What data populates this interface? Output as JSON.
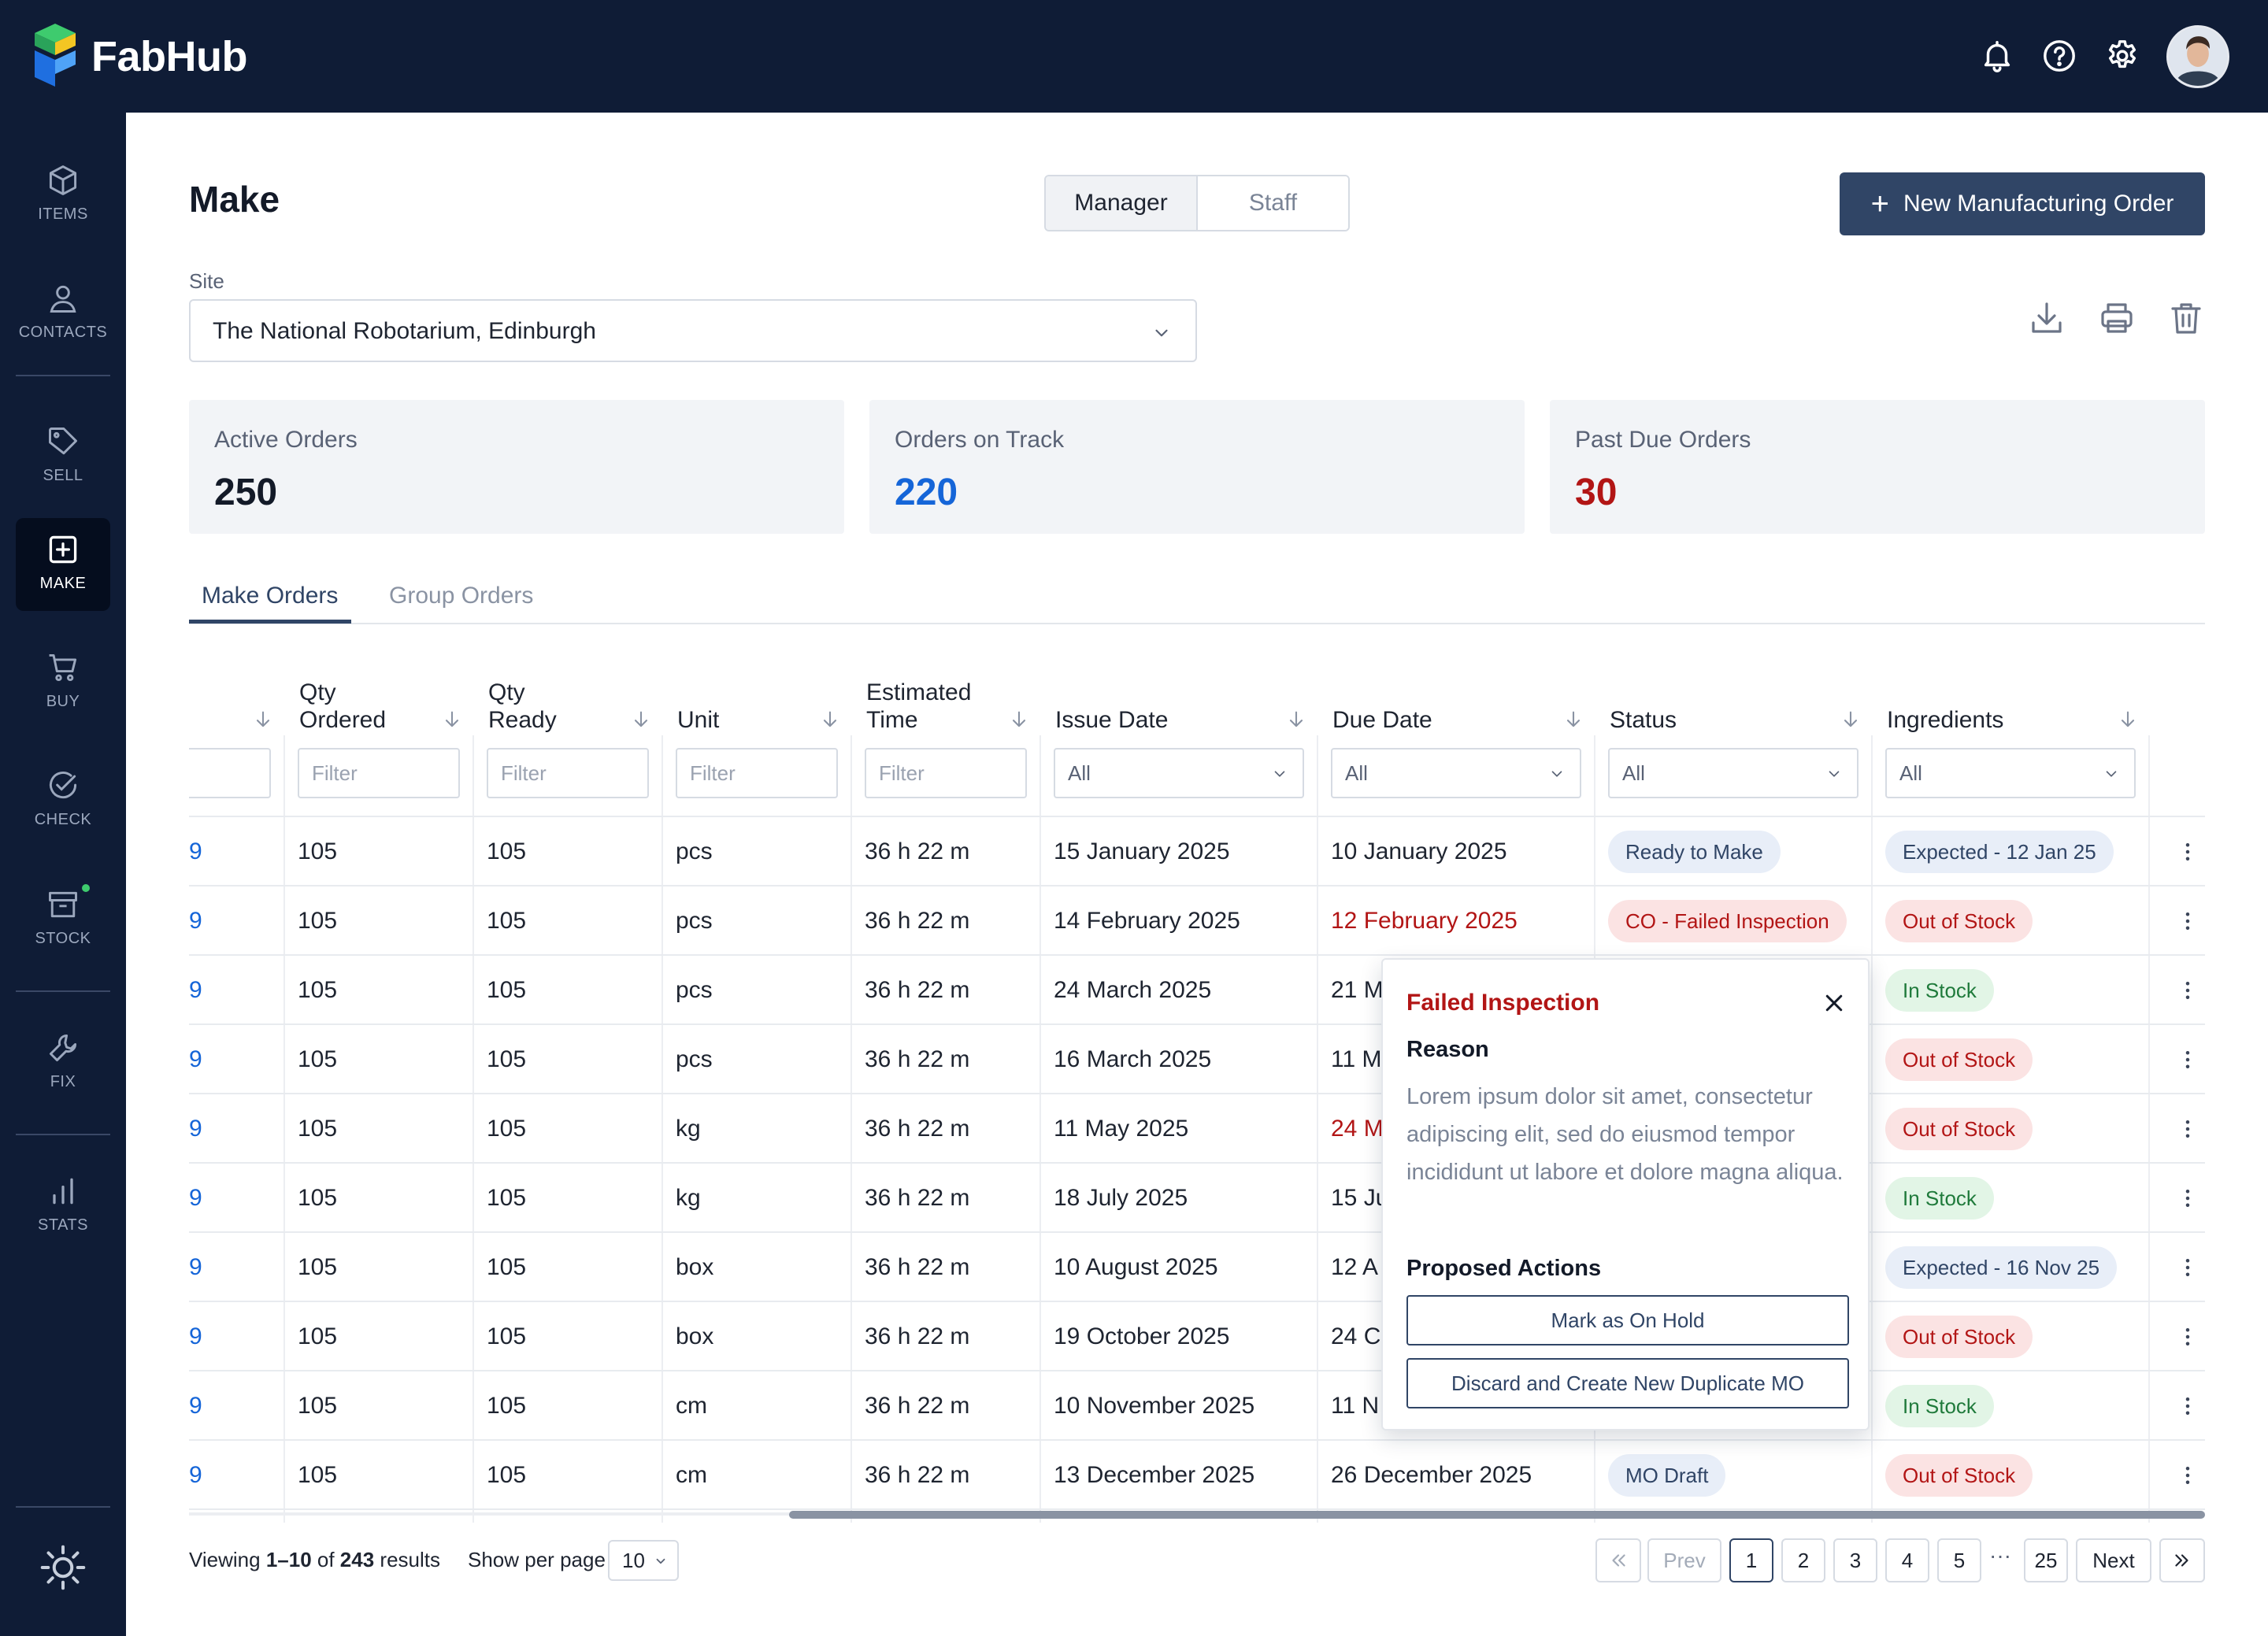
{
  "app": {
    "brand": "FabHub"
  },
  "colors": {
    "nav_bg": "#0f1c36",
    "accent": "#304566",
    "link_blue": "#1565d8",
    "danger": "#b21515",
    "success": "#1f7a3b"
  },
  "topbar": {
    "icons": [
      "bell-icon",
      "help-icon",
      "gear-icon"
    ],
    "avatar": "user-avatar"
  },
  "sidebar": {
    "items": [
      {
        "label": "ITEMS",
        "icon": "box-icon"
      },
      {
        "label": "CONTACTS",
        "icon": "person-icon"
      },
      {
        "label": "SELL",
        "icon": "tag-icon"
      },
      {
        "label": "MAKE",
        "icon": "plus-square-icon",
        "active": true
      },
      {
        "label": "BUY",
        "icon": "cart-icon"
      },
      {
        "label": "CHECK",
        "icon": "check-circle-icon"
      },
      {
        "label": "STOCK",
        "icon": "archive-icon"
      },
      {
        "label": "FIX",
        "icon": "wrench-icon"
      },
      {
        "label": "STATS",
        "icon": "bar-chart-icon"
      }
    ],
    "theme_icon": "sun-icon"
  },
  "header": {
    "title": "Make",
    "view_toggle": {
      "options": [
        "Manager",
        "Staff"
      ],
      "selected": "Manager"
    },
    "new_button": "New Manufacturing Order",
    "site_label": "Site",
    "site_value": "The National Robotarium, Edinburgh",
    "actions": [
      "download-icon",
      "print-icon",
      "trash-icon"
    ]
  },
  "stats": [
    {
      "label": "Active Orders",
      "value": "250"
    },
    {
      "label": "Orders on Track",
      "value": "220"
    },
    {
      "label": "Past Due Orders",
      "value": "30"
    }
  ],
  "tabs": {
    "items": [
      "Make Orders",
      "Group Orders"
    ],
    "active": "Make Orders"
  },
  "table": {
    "columns": [
      {
        "label": "",
        "filter": ""
      },
      {
        "label": "Qty\nOrdered",
        "filter": "Filter"
      },
      {
        "label": "Qty\nReady",
        "filter": "Filter"
      },
      {
        "label": "Unit",
        "filter": "Filter"
      },
      {
        "label": "Estimated\nTime",
        "filter": "Filter"
      },
      {
        "label": "Issue Date",
        "filter": "All"
      },
      {
        "label": "Due Date",
        "filter": "All"
      },
      {
        "label": "Status",
        "filter": "All"
      },
      {
        "label": "Ingredients",
        "filter": "All"
      }
    ],
    "rows": [
      {
        "id": "9",
        "qty_ordered": "105",
        "qty_ready": "105",
        "unit": "pcs",
        "time": "36 h 22 m",
        "issue": "15 January 2025",
        "due": "10 January 2025",
        "due_overdue": false,
        "status": "Ready to Make",
        "status_type": "ready",
        "ingredients": "Expected - 12 Jan 25",
        "ing_type": "expected"
      },
      {
        "id": "9",
        "qty_ordered": "105",
        "qty_ready": "105",
        "unit": "pcs",
        "time": "36 h 22 m",
        "issue": "14 February 2025",
        "due": "12 February 2025",
        "due_overdue": true,
        "status": "CO - Failed Inspection",
        "status_type": "failed",
        "ingredients": "Out of Stock",
        "ing_type": "out"
      },
      {
        "id": "9",
        "qty_ordered": "105",
        "qty_ready": "105",
        "unit": "pcs",
        "time": "36 h 22 m",
        "issue": "24 March 2025",
        "due": "21 M",
        "due_overdue": false,
        "status": "",
        "status_type": "",
        "ingredients": "In Stock",
        "ing_type": "instock"
      },
      {
        "id": "9",
        "qty_ordered": "105",
        "qty_ready": "105",
        "unit": "pcs",
        "time": "36 h 22 m",
        "issue": "16 March 2025",
        "due": "11 M",
        "due_overdue": false,
        "status": "",
        "status_type": "",
        "ingredients": "Out of Stock",
        "ing_type": "out"
      },
      {
        "id": "9",
        "qty_ordered": "105",
        "qty_ready": "105",
        "unit": "kg",
        "time": "36 h 22 m",
        "issue": "11 May 2025",
        "due": "24 M",
        "due_overdue": true,
        "status": "",
        "status_type": "",
        "ingredients": "Out of Stock",
        "ing_type": "out"
      },
      {
        "id": "9",
        "qty_ordered": "105",
        "qty_ready": "105",
        "unit": "kg",
        "time": "36 h 22 m",
        "issue": "18 July 2025",
        "due": "15 Ju",
        "due_overdue": false,
        "status": "",
        "status_type": "",
        "ingredients": "In Stock",
        "ing_type": "instock"
      },
      {
        "id": "9",
        "qty_ordered": "105",
        "qty_ready": "105",
        "unit": "box",
        "time": "36 h 22 m",
        "issue": "10 August 2025",
        "due": "12 A",
        "due_overdue": false,
        "status": "",
        "status_type": "",
        "ingredients": "Expected - 16 Nov 25",
        "ing_type": "expected"
      },
      {
        "id": "9",
        "qty_ordered": "105",
        "qty_ready": "105",
        "unit": "box",
        "time": "36 h 22 m",
        "issue": "19 October 2025",
        "due": "24 C",
        "due_overdue": false,
        "status": "",
        "status_type": "",
        "ingredients": "Out of Stock",
        "ing_type": "out"
      },
      {
        "id": "9",
        "qty_ordered": "105",
        "qty_ready": "105",
        "unit": "cm",
        "time": "36 h 22 m",
        "issue": "10 November 2025",
        "due": "11 N",
        "due_overdue": false,
        "status": "",
        "status_type": "",
        "ingredients": "In Stock",
        "ing_type": "instock"
      },
      {
        "id": "9",
        "qty_ordered": "105",
        "qty_ready": "105",
        "unit": "cm",
        "time": "36 h 22 m",
        "issue": "13 December 2025",
        "due": "26 December 2025",
        "due_overdue": false,
        "status": "MO Draft",
        "status_type": "draft",
        "ingredients": "Out of Stock",
        "ing_type": "out"
      }
    ]
  },
  "popover": {
    "title": "Failed Inspection",
    "reason_label": "Reason",
    "reason_text": "Lorem ipsum dolor sit amet, consectetur adipiscing elit, sed do eiusmod tempor incididunt ut labore et dolore magna aliqua.",
    "actions_label": "Proposed Actions",
    "actions": [
      "Mark as On Hold",
      "Discard and Create New Duplicate MO"
    ]
  },
  "footer": {
    "viewing_prefix": "Viewing ",
    "viewing_range": "1–10",
    "viewing_of": " of ",
    "viewing_total": "243",
    "viewing_suffix": " results",
    "per_page_label": "Show per page",
    "per_page_value": "10"
  },
  "pagination": {
    "prev": "Prev",
    "next": "Next",
    "pages": [
      "1",
      "2",
      "3",
      "4",
      "5"
    ],
    "last": "25",
    "current": "1",
    "ellipsis": "···"
  }
}
